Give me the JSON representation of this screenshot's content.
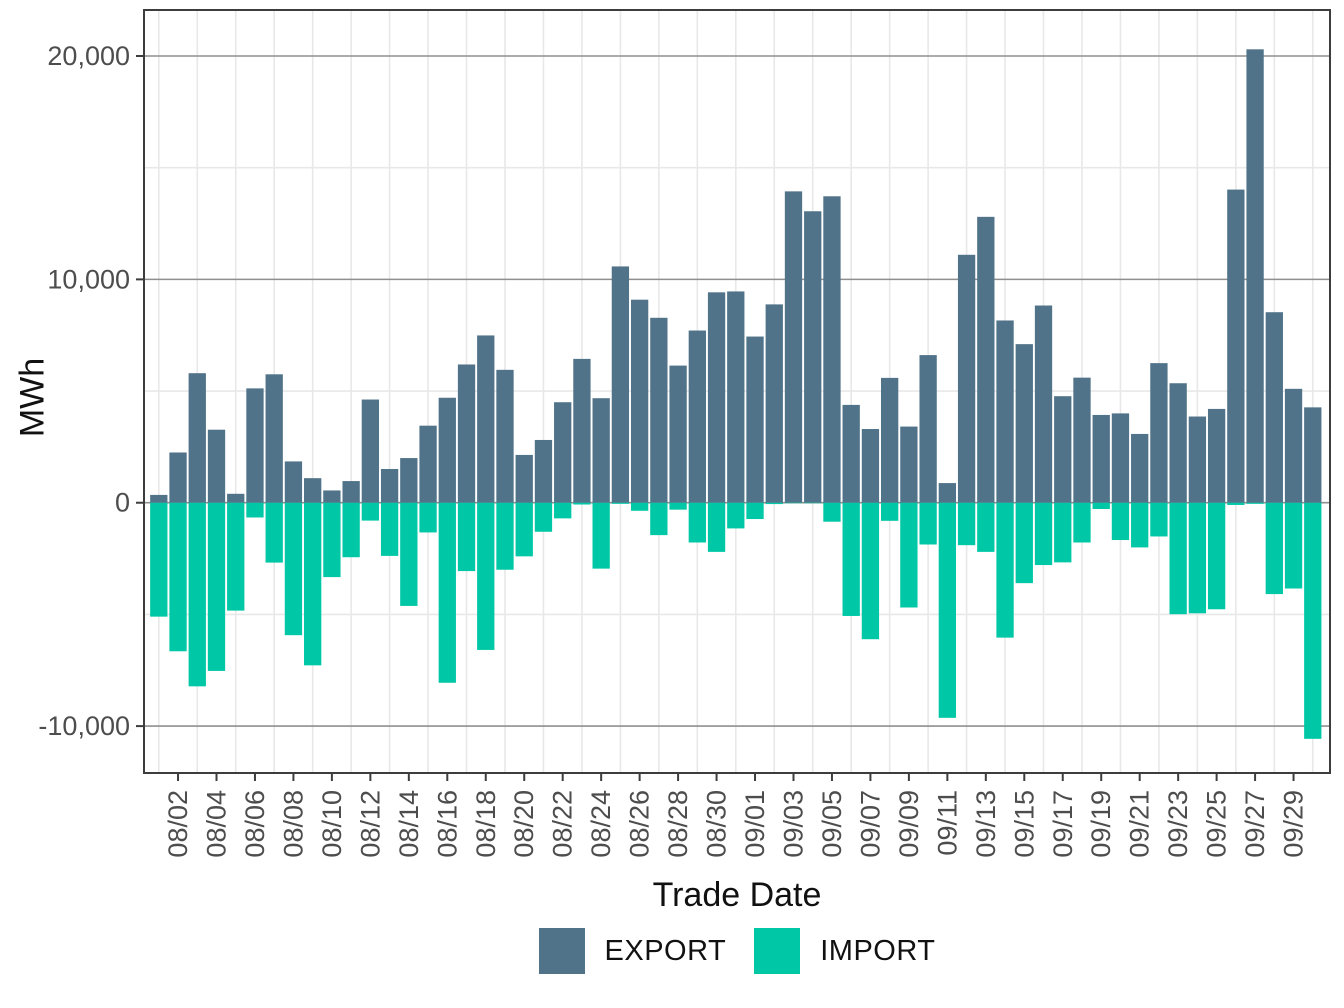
{
  "chart_data": {
    "type": "bar",
    "title": "",
    "xlabel": "Trade Date",
    "ylabel": "MWh",
    "x": [
      "08/01",
      "08/02",
      "08/03",
      "08/04",
      "08/05",
      "08/06",
      "08/07",
      "08/08",
      "08/09",
      "08/10",
      "08/11",
      "08/12",
      "08/13",
      "08/14",
      "08/15",
      "08/16",
      "08/17",
      "08/18",
      "08/19",
      "08/20",
      "08/21",
      "08/22",
      "08/23",
      "08/24",
      "08/25",
      "08/26",
      "08/27",
      "08/28",
      "08/29",
      "08/30",
      "08/31",
      "09/01",
      "09/02",
      "09/03",
      "09/04",
      "09/05",
      "09/06",
      "09/07",
      "09/08",
      "09/09",
      "09/10",
      "09/11",
      "09/12",
      "09/13",
      "09/14",
      "09/15",
      "09/16",
      "09/17",
      "09/18",
      "09/19",
      "09/20",
      "09/21",
      "09/22",
      "09/23",
      "09/24",
      "09/25",
      "09/26",
      "09/27",
      "09/28",
      "09/29",
      "09/30"
    ],
    "x_tick_labels": [
      "08/02",
      "08/04",
      "08/06",
      "08/08",
      "08/10",
      "08/12",
      "08/14",
      "08/16",
      "08/18",
      "08/20",
      "08/22",
      "08/24",
      "08/26",
      "08/28",
      "08/30",
      "09/01",
      "09/03",
      "09/05",
      "09/07",
      "09/09",
      "09/11",
      "09/13",
      "09/15",
      "09/17",
      "09/19",
      "09/21",
      "09/23",
      "09/25",
      "09/27",
      "09/29"
    ],
    "series": [
      {
        "name": "EXPORT",
        "color": "#507389",
        "values": [
          350,
          2250,
          5800,
          3270,
          400,
          5120,
          5750,
          1850,
          1100,
          550,
          970,
          4620,
          1510,
          2000,
          3450,
          4700,
          6190,
          7490,
          5950,
          2140,
          2810,
          4500,
          6440,
          4680,
          10580,
          9090,
          8280,
          6140,
          7710,
          9420,
          9460,
          7440,
          8880,
          13940,
          13050,
          13720,
          4380,
          3300,
          5590,
          3410,
          6610,
          880,
          11100,
          12800,
          8160,
          7100,
          8830,
          4770,
          5600,
          3930,
          4000,
          3080,
          6250,
          5350,
          3860,
          4200,
          14020,
          20300,
          8530,
          5100,
          4270
        ]
      },
      {
        "name": "IMPORT",
        "color": "#00C8A6",
        "values": [
          -5100,
          -6650,
          -8220,
          -7530,
          -4830,
          -660,
          -2680,
          -5930,
          -7280,
          -3330,
          -2440,
          -800,
          -2380,
          -4620,
          -1330,
          -8060,
          -3060,
          -6590,
          -3000,
          -2400,
          -1300,
          -700,
          -80,
          -2950,
          -50,
          -360,
          -1450,
          -310,
          -1780,
          -2200,
          -1150,
          -730,
          -60,
          -20,
          -20,
          -850,
          -5070,
          -6110,
          -810,
          -4690,
          -1870,
          -9630,
          -1900,
          -2200,
          -6040,
          -3600,
          -2790,
          -2670,
          -1780,
          -280,
          -1670,
          -2000,
          -1510,
          -4990,
          -4950,
          -4770,
          -100,
          -50,
          -4090,
          -3840,
          -10570
        ]
      }
    ],
    "y_ticks": {
      "values": [
        20000,
        10000,
        0,
        -10000
      ],
      "labels": [
        "20,000",
        "10,000",
        "0",
        "-10,000"
      ]
    },
    "y_minor_ticks": [
      15000,
      5000,
      -5000
    ],
    "ylim": [
      -12100,
      22060
    ],
    "grid": "on",
    "legend_position": "bottom",
    "colors": {
      "grid_major": "#8f8f8f",
      "grid_minor": "#e8e8e8",
      "panel_border": "#3d3d3d",
      "tick_label": "#4d4d4d"
    }
  }
}
